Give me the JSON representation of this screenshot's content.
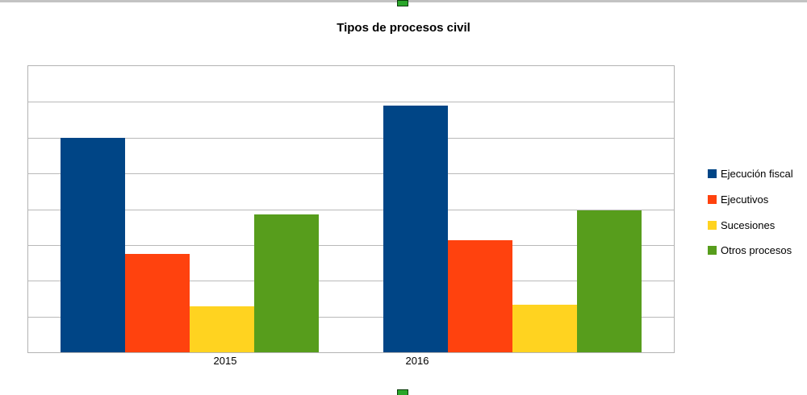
{
  "selection": {
    "handle_color": "#2aa62a",
    "handle_border_color": "#0b3d0b",
    "frame_strip_color": "#c3c3c3"
  },
  "chart_data": {
    "type": "bar",
    "title": "Tipos de procesos civil",
    "categories": [
      "2015",
      "2016"
    ],
    "series": [
      {
        "name": "Ejecución fiscal",
        "color": "#004586",
        "values": [
          6.0,
          6.9
        ]
      },
      {
        "name": "Ejecutivos",
        "color": "#ff420e",
        "values": [
          2.76,
          3.14
        ]
      },
      {
        "name": "Sucesiones",
        "color": "#ffd320",
        "values": [
          1.28,
          1.32
        ]
      },
      {
        "name": "Otros procesos",
        "color": "#579d1c",
        "values": [
          3.85,
          3.97
        ]
      }
    ],
    "xlabel": "",
    "ylabel": "",
    "ylim": [
      0,
      8
    ],
    "y_gridline_interval": 1,
    "y_axis_labels_visible": false,
    "grid": "horizontal",
    "grid_color": "#b9b9b9",
    "plot_border_color": "#b3b3b3",
    "legend_position": "right"
  }
}
